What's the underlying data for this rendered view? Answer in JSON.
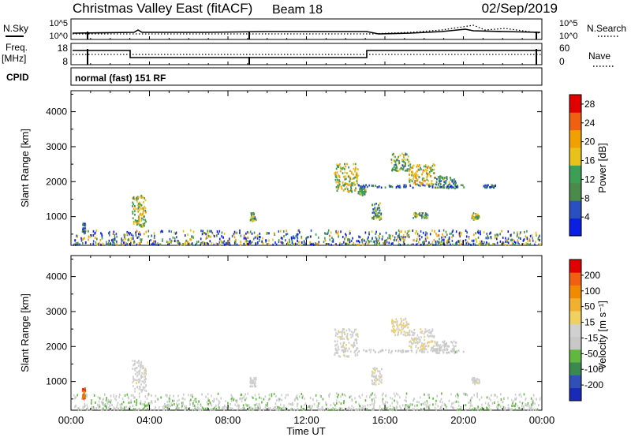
{
  "header": {
    "station": "Christmas Valley East (fitACF)",
    "beam": "Beam 18",
    "date": "02/Sep/2019"
  },
  "top_panels": {
    "left": {
      "nsky": "N.Sky",
      "freq": "Freq.",
      "mhz": "[MHz]",
      "cpid": "CPID"
    },
    "right": {
      "nsearch": "N.Search",
      "nave": "Nave"
    },
    "noise_ticks_left": [
      "10^5",
      "10^0"
    ],
    "noise_ticks_right": [
      "10^5",
      "10^0"
    ],
    "freq_ticks": [
      "18",
      "8"
    ],
    "nave_ticks": [
      "60",
      "0"
    ],
    "cpid_text": "normal (fast) 151 RF"
  },
  "colors": {
    "power_scale": [
      "#0a1ee6",
      "#2a4fc0",
      "#4a8a4a",
      "#3d9e56",
      "#e8c21a",
      "#f2a000",
      "#f06010",
      "#e00000"
    ],
    "velocity_scale": [
      "#e00000",
      "#f06010",
      "#f08a00",
      "#f0b030",
      "#f0d060",
      "#d0d0d0",
      "#c8c8c8",
      "#60b840",
      "#3a8a50",
      "#3050b8",
      "#1a2ab8"
    ]
  },
  "chart_data": [
    {
      "type": "heatmap",
      "name": "power",
      "ylabel": "Slant Range [km]",
      "yticks": [
        "1000",
        "2000",
        "3000",
        "4000"
      ],
      "ylim": [
        180,
        4600
      ],
      "colorbar": {
        "label": "Power [dB]",
        "ticks": [
          "4",
          "8",
          "12",
          "16",
          "20",
          "24",
          "28"
        ],
        "range": [
          0,
          30
        ]
      },
      "echo_regions": [
        {
          "t": [
            0.55,
            0.7
          ],
          "r": [
            500,
            800
          ],
          "val": 6
        },
        {
          "t": [
            3.1,
            3.8
          ],
          "r": [
            700,
            1600
          ],
          "val": 16
        },
        {
          "t": [
            9.1,
            9.4
          ],
          "r": [
            850,
            1100
          ],
          "val": 12
        },
        {
          "t": [
            13.4,
            14.6
          ],
          "r": [
            1700,
            2500
          ],
          "val": 16
        },
        {
          "t": [
            14.6,
            15.0
          ],
          "r": [
            1600,
            1800
          ],
          "val": 12
        },
        {
          "t": [
            15.3,
            15.8
          ],
          "r": [
            900,
            1400
          ],
          "val": 12
        },
        {
          "t": [
            16.3,
            17.2
          ],
          "r": [
            2300,
            2800
          ],
          "val": 12
        },
        {
          "t": [
            17.2,
            18.5
          ],
          "r": [
            1900,
            2500
          ],
          "val": 18
        },
        {
          "t": [
            18.5,
            19.6
          ],
          "r": [
            1800,
            2150
          ],
          "val": 10
        },
        {
          "t": [
            14.6,
            20.0
          ],
          "r": [
            1820,
            1900
          ],
          "val": 6
        },
        {
          "t": [
            17.4,
            18.2
          ],
          "r": [
            950,
            1100
          ],
          "val": 12
        },
        {
          "t": [
            20.4,
            20.8
          ],
          "r": [
            900,
            1100
          ],
          "val": 14
        },
        {
          "t": [
            21.0,
            21.6
          ],
          "r": [
            1820,
            1900
          ],
          "val": 6
        }
      ],
      "ground_band": {
        "r": [
          180,
          600
        ],
        "val": 10
      }
    },
    {
      "type": "heatmap",
      "name": "velocity",
      "ylabel": "Slant Range [km]",
      "yticks": [
        "1000",
        "2000",
        "3000",
        "4000"
      ],
      "ylim": [
        180,
        4600
      ],
      "colorbar": {
        "label": "Velocity [m s⁻¹]",
        "ticks": [
          "200",
          "100",
          "50",
          "15",
          "-15",
          "-50",
          "-100",
          "-200"
        ],
        "range": [
          -250,
          250
        ]
      },
      "echo_regions": [
        {
          "t": [
            0.55,
            0.7
          ],
          "r": [
            500,
            800
          ],
          "val": 180
        },
        {
          "t": [
            3.1,
            3.8
          ],
          "r": [
            700,
            1600
          ],
          "val": -5
        },
        {
          "t": [
            9.1,
            9.4
          ],
          "r": [
            850,
            1100
          ],
          "val": -10
        },
        {
          "t": [
            13.4,
            14.6
          ],
          "r": [
            1700,
            2500
          ],
          "val": 0
        },
        {
          "t": [
            15.3,
            15.8
          ],
          "r": [
            900,
            1400
          ],
          "val": 0
        },
        {
          "t": [
            16.3,
            17.2
          ],
          "r": [
            2300,
            2800
          ],
          "val": 20
        },
        {
          "t": [
            17.2,
            18.5
          ],
          "r": [
            1900,
            2500
          ],
          "val": 5
        },
        {
          "t": [
            18.5,
            19.6
          ],
          "r": [
            1800,
            2150
          ],
          "val": -30
        },
        {
          "t": [
            14.6,
            20.0
          ],
          "r": [
            1820,
            1900
          ],
          "val": -40
        },
        {
          "t": [
            20.4,
            20.8
          ],
          "r": [
            900,
            1100
          ],
          "val": 0
        }
      ],
      "ground_band": {
        "r": [
          180,
          650
        ],
        "val": -40
      }
    }
  ],
  "time_axis": {
    "label": "Time UT",
    "ticks": [
      "00:00",
      "04:00",
      "08:00",
      "12:00",
      "16:00",
      "20:00",
      "00:00"
    ],
    "range_hours": [
      0,
      24
    ]
  }
}
